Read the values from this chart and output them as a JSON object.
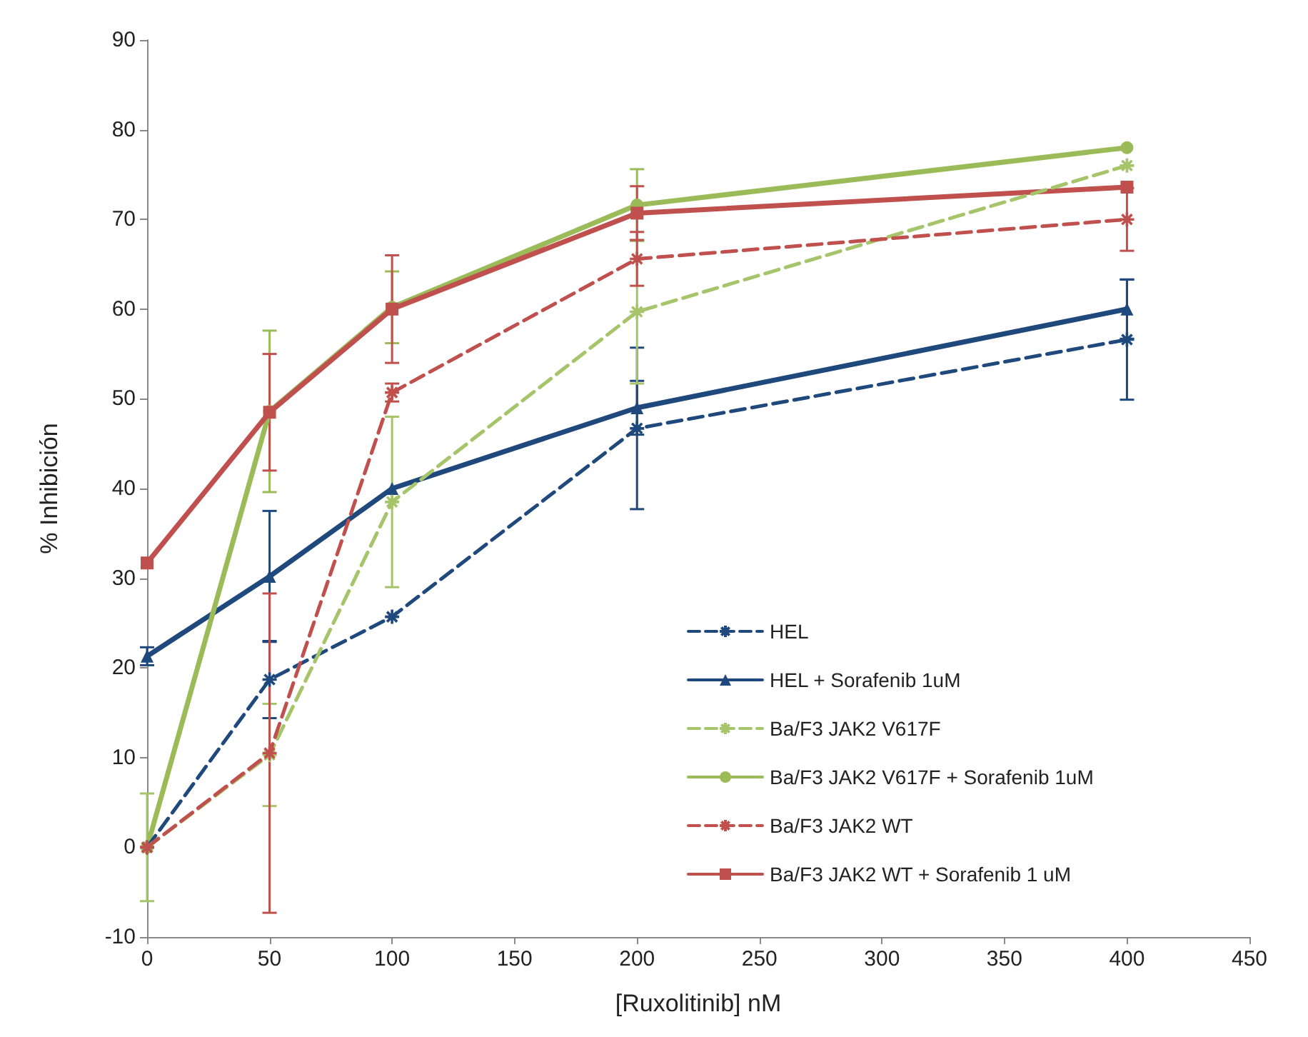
{
  "chart_data": {
    "type": "line",
    "xlabel": "[Ruxolitinib] nM",
    "ylabel": "% Inhibición",
    "x": [
      0,
      50,
      100,
      200,
      400
    ],
    "xlim": [
      0,
      450
    ],
    "xticks": [
      0,
      50,
      100,
      150,
      200,
      250,
      300,
      350,
      400,
      450
    ],
    "ylim": [
      -10,
      90
    ],
    "yticks": [
      -10,
      0,
      10,
      20,
      30,
      40,
      50,
      60,
      70,
      80,
      90
    ],
    "grid": false,
    "legend": "bottom right",
    "series": [
      {
        "name": "HEL",
        "color": "#1f497d",
        "line_style": "dashed",
        "marker": "cross",
        "values": [
          0,
          18.7,
          25.7,
          46.7,
          56.6
        ],
        "errors": [
          null,
          4.3,
          null,
          9,
          6.7
        ]
      },
      {
        "name": "HEL + Sorafenib 1uM",
        "color": "#1f497d",
        "line_style": "solid",
        "marker": "triangle",
        "values": [
          21.3,
          30.2,
          40,
          49,
          60
        ],
        "errors": [
          1,
          7.3,
          null,
          3,
          3.3
        ]
      },
      {
        "name": "Ba/F3 JAK2 V617F",
        "color": "#a6c46a",
        "line_style": "dashed",
        "marker": "cross",
        "values": [
          0,
          10.3,
          38.5,
          59.7,
          76
        ],
        "errors": [
          6,
          5.7,
          9.5,
          8,
          null
        ]
      },
      {
        "name": "Ba/F3 JAK2 V617F + Sorafenib 1uM",
        "color": "#9bbb59",
        "line_style": "solid",
        "marker": "circle",
        "values": [
          0,
          48.6,
          60.2,
          71.6,
          78
        ],
        "errors": [
          null,
          9,
          4,
          4,
          null
        ]
      },
      {
        "name": "Ba/F3 JAK2 WT",
        "color": "#c0504d",
        "line_style": "dashed",
        "marker": "cross",
        "values": [
          0,
          10.5,
          50.7,
          65.6,
          70
        ],
        "errors": [
          null,
          17.8,
          1,
          3,
          3.5
        ]
      },
      {
        "name": "Ba/F3 JAK2 WT + Sorafenib 1 uM",
        "color": "#c0504d",
        "line_style": "solid",
        "marker": "square",
        "values": [
          31.7,
          48.5,
          60,
          70.7,
          73.6
        ],
        "errors": [
          null,
          6.5,
          6,
          3,
          null
        ]
      }
    ]
  }
}
